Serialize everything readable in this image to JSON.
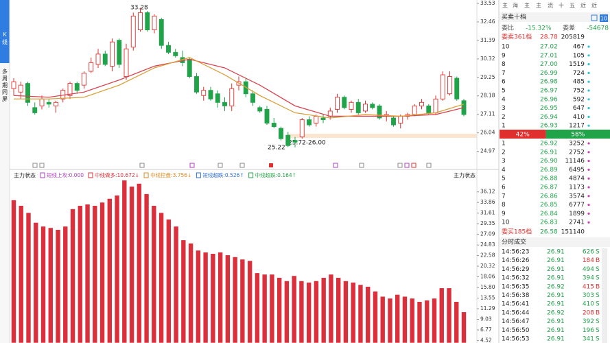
{
  "sidebar": {
    "tabs": [
      "K线",
      "多周期同屏"
    ]
  },
  "kline": {
    "ylim": [
      24.0,
      33.73
    ],
    "yticks": [
      33.53,
      32.46,
      31.39,
      30.32,
      29.25,
      28.18,
      27.11,
      26.04,
      24.97
    ],
    "up_color": "#e0302e",
    "down_color": "#21a34a",
    "candles": [
      [
        28.6,
        29.2,
        28.2,
        29.0
      ],
      [
        28.4,
        29.0,
        28.0,
        28.8
      ],
      [
        28.9,
        29.0,
        27.6,
        27.8
      ],
      [
        27.5,
        27.8,
        27.1,
        27.2
      ],
      [
        27.6,
        28.2,
        27.4,
        28.0
      ],
      [
        27.8,
        28.0,
        27.5,
        27.7
      ],
      [
        27.6,
        27.9,
        27.2,
        27.8
      ],
      [
        28.0,
        28.6,
        27.8,
        28.5
      ],
      [
        28.2,
        29.0,
        28.0,
        28.9
      ],
      [
        28.9,
        29.0,
        28.3,
        28.5
      ],
      [
        28.8,
        29.6,
        28.6,
        29.5
      ],
      [
        29.6,
        30.4,
        29.5,
        30.1
      ],
      [
        30.0,
        30.9,
        29.8,
        30.6
      ],
      [
        30.6,
        30.8,
        29.9,
        30.0
      ],
      [
        29.9,
        31.5,
        29.6,
        31.3
      ],
      [
        31.4,
        31.5,
        29.8,
        30.0
      ],
      [
        29.3,
        31.2,
        29.1,
        30.9
      ],
      [
        31.0,
        33.0,
        30.8,
        32.8
      ],
      [
        32.0,
        33.28,
        31.9,
        33.0
      ],
      [
        33.0,
        33.1,
        31.9,
        32.0
      ],
      [
        32.0,
        32.9,
        31.8,
        32.8
      ],
      [
        32.6,
        32.7,
        30.9,
        31.1
      ],
      [
        31.1,
        31.3,
        30.6,
        30.7
      ],
      [
        30.7,
        30.9,
        30.4,
        30.5
      ],
      [
        30.4,
        30.8,
        29.9,
        30.1
      ],
      [
        30.3,
        30.4,
        29.2,
        29.3
      ],
      [
        29.3,
        29.5,
        28.3,
        28.4
      ],
      [
        28.2,
        28.7,
        27.9,
        28.5
      ],
      [
        28.5,
        28.7,
        27.9,
        28.0
      ],
      [
        28.3,
        28.5,
        27.5,
        27.8
      ],
      [
        27.8,
        28.1,
        27.3,
        27.6
      ],
      [
        27.6,
        28.9,
        27.3,
        28.6
      ],
      [
        28.8,
        29.3,
        28.5,
        29.0
      ],
      [
        29.0,
        29.2,
        28.1,
        28.3
      ],
      [
        28.3,
        28.5,
        27.6,
        27.8
      ],
      [
        27.5,
        27.6,
        27.2,
        27.3
      ],
      [
        27.4,
        27.6,
        26.5,
        26.6
      ],
      [
        26.6,
        26.9,
        26.3,
        26.4
      ],
      [
        26.3,
        26.4,
        25.6,
        25.7
      ],
      [
        25.9,
        26.1,
        25.22,
        25.3
      ],
      [
        25.6,
        25.8,
        25.2,
        25.5
      ],
      [
        25.8,
        26.9,
        25.7,
        26.8
      ],
      [
        26.8,
        27.0,
        26.4,
        26.5
      ],
      [
        26.6,
        27.1,
        26.4,
        27.0
      ],
      [
        26.9,
        27.1,
        26.6,
        26.8
      ],
      [
        27.0,
        27.5,
        26.8,
        27.3
      ],
      [
        27.4,
        28.3,
        27.2,
        28.1
      ],
      [
        28.1,
        28.2,
        27.4,
        27.5
      ],
      [
        27.4,
        27.9,
        27.2,
        27.8
      ],
      [
        27.8,
        28.0,
        27.1,
        27.2
      ],
      [
        27.3,
        27.9,
        27.2,
        27.7
      ],
      [
        27.7,
        27.8,
        27.4,
        27.5
      ],
      [
        27.6,
        27.7,
        26.8,
        26.9
      ],
      [
        27.0,
        27.3,
        26.7,
        27.1
      ],
      [
        26.9,
        27.0,
        26.4,
        26.5
      ],
      [
        26.6,
        27.1,
        26.3,
        27.0
      ],
      [
        27.0,
        27.2,
        26.8,
        27.1
      ],
      [
        27.1,
        27.7,
        27.0,
        27.6
      ],
      [
        27.6,
        28.0,
        27.4,
        27.8
      ],
      [
        27.6,
        27.7,
        27.1,
        27.2
      ],
      [
        27.2,
        28.2,
        27.1,
        28.0
      ],
      [
        28.0,
        29.6,
        27.9,
        29.4
      ],
      [
        28.3,
        29.6,
        28.2,
        29.3
      ],
      [
        29.2,
        29.3,
        27.9,
        28.0
      ],
      [
        27.9,
        28.0,
        27.0,
        27.1
      ]
    ],
    "ma_x": [
      0,
      5,
      10,
      15,
      20,
      25,
      30,
      35,
      40,
      45,
      50,
      55,
      60,
      64
    ],
    "ma": [
      {
        "color": "#d9434f",
        "values": [
          28.2,
          28.1,
          28.4,
          29.1,
          29.9,
          30.3,
          29.8,
          28.8,
          27.6,
          27.0,
          27.0,
          27.0,
          27.1,
          27.5
        ]
      },
      {
        "color": "#d9a03c",
        "values": [
          28.0,
          28.0,
          28.1,
          28.8,
          29.8,
          30.4,
          29.4,
          28.2,
          27.2,
          26.9,
          27.1,
          27.0,
          27.2,
          27.7
        ]
      }
    ],
    "annotations": {
      "high": "33.28",
      "low": "25.22",
      "range": "25.72-26.00"
    }
  },
  "indicator": {
    "title": "主力状态",
    "title_right": "主力状态",
    "items": [
      {
        "text": "短线上攻:0.000",
        "color": "#b03fc4"
      },
      {
        "text": "中线做多:10.672↓",
        "color": "#d9303a"
      },
      {
        "text": "中线控盘:3.756↓",
        "color": "#e08a1e"
      },
      {
        "text": "短线超跌:0.526↑",
        "color": "#2f6fd6"
      },
      {
        "text": "中线超跌:0.164↑",
        "color": "#2aa34a"
      }
    ],
    "ylim": [
      4.0,
      38.7
    ],
    "yticks": [
      36.12,
      33.86,
      31.61,
      29.35,
      27.09,
      24.83,
      22.58,
      20.32,
      18.06,
      {
        "value": 15.8,
        "label": "15.80"
      },
      13.55,
      11.29,
      9.03,
      6.77,
      4.52
    ],
    "color": "#dc2f3c",
    "values": [
      34.4,
      33.2,
      31.7,
      29.6,
      28.8,
      28.5,
      28.1,
      28.8,
      32.5,
      33.2,
      33.5,
      33.2,
      33.9,
      34.7,
      35.4,
      38.6,
      37.3,
      37.9,
      35.7,
      33.2,
      31.7,
      30.3,
      28.8,
      25.9,
      25.2,
      23.7,
      23.3,
      23.0,
      23.3,
      22.7,
      22.3,
      21.8,
      21.5,
      18.9,
      18.6,
      18.6,
      17.9,
      17.2,
      18.3,
      17.2,
      16.9,
      17.2,
      17.9,
      18.6,
      17.9,
      17.2,
      16.9,
      16.4,
      16.0,
      15.0,
      13.9,
      13.5,
      14.3,
      13.9,
      13.5,
      12.8,
      13.1,
      13.5,
      15.7,
      15.7,
      12.8,
      10.6
    ]
  },
  "quote": {
    "tabs": [
      "主",
      "海",
      "主",
      "主",
      "流",
      "十",
      "五",
      "近",
      "近"
    ],
    "title": "买卖十档",
    "depth_button": "10",
    "weibi_label": "委比",
    "weibi": "-15.32%",
    "weicha_label": "委差",
    "weicha": -54678,
    "sell_total": {
      "label": "委卖361档",
      "price": "28.78",
      "volume": 205819
    },
    "asks": [
      {
        "level": 10,
        "price": "27.02",
        "volume": 467
      },
      {
        "level": 9,
        "price": "27.01",
        "volume": 105
      },
      {
        "level": 8,
        "price": "27.00",
        "volume": 1519
      },
      {
        "level": 7,
        "price": "26.99",
        "volume": 724
      },
      {
        "level": 6,
        "price": "26.98",
        "volume": 485
      },
      {
        "level": 5,
        "price": "26.97",
        "volume": 752
      },
      {
        "level": 4,
        "price": "26.96",
        "volume": 592
      },
      {
        "level": 3,
        "price": "26.95",
        "volume": 647
      },
      {
        "level": 2,
        "price": "26.94",
        "volume": 410
      },
      {
        "level": 1,
        "price": "26.93",
        "volume": 1217
      }
    ],
    "ratio": {
      "sell": {
        "value": 42,
        "label": "42%"
      },
      "buy": {
        "value": 58,
        "label": "58%"
      }
    },
    "bids": [
      {
        "level": 1,
        "price": "26.92",
        "volume": 3252
      },
      {
        "level": 2,
        "price": "26.91",
        "volume": 2752
      },
      {
        "level": 3,
        "price": "26.90",
        "volume": 11146
      },
      {
        "level": 4,
        "price": "26.89",
        "volume": 6495
      },
      {
        "level": 5,
        "price": "26.88",
        "volume": 4874
      },
      {
        "level": 6,
        "price": "26.87",
        "volume": 1173
      },
      {
        "level": 7,
        "price": "26.86",
        "volume": 3574
      },
      {
        "level": 8,
        "price": "26.85",
        "volume": 6777
      },
      {
        "level": 9,
        "price": "26.84",
        "volume": 1899
      },
      {
        "level": 10,
        "price": "26.83",
        "volume": 2741
      }
    ],
    "buy_total": {
      "label": "委买185档",
      "price": "26.58",
      "volume": 151140
    }
  },
  "trades": {
    "title": "分时成交",
    "rows": [
      [
        "14:56:23",
        "26.91",
        626,
        "S"
      ],
      [
        "14:56:26",
        "26.91",
        184,
        "B"
      ],
      [
        "14:56:29",
        "26.91",
        494,
        "S"
      ],
      [
        "14:56:32",
        "26.91",
        394,
        "S"
      ],
      [
        "14:56:35",
        "26.92",
        415,
        "B"
      ],
      [
        "14:56:38",
        "26.91",
        303,
        "S"
      ],
      [
        "14:56:41",
        "26.91",
        410,
        "S"
      ],
      [
        "14:56:44",
        "26.92",
        208,
        "B"
      ],
      [
        "14:56:47",
        "26.91",
        392,
        "S"
      ],
      [
        "14:56:50",
        "26.91",
        196,
        "S"
      ],
      [
        "14:56:53",
        "26.91",
        341,
        "S"
      ]
    ]
  }
}
